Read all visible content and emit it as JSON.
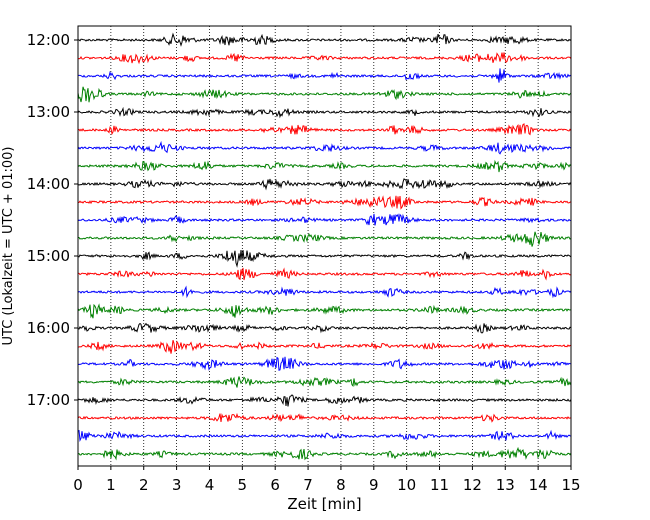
{
  "chart_data": {
    "type": "line",
    "title": "",
    "xlabel": "Zeit  [min]",
    "ylabel": "UTC (Lokalzeit = UTC + 01:00)",
    "xlim": [
      0,
      15
    ],
    "x_ticks": [
      "0",
      "1",
      "2",
      "3",
      "4",
      "5",
      "6",
      "7",
      "8",
      "9",
      "10",
      "11",
      "12",
      "13",
      "14",
      "15"
    ],
    "y_ticks": [
      "12:00",
      "13:00",
      "14:00",
      "15:00",
      "16:00",
      "17:00"
    ],
    "trace_interval_minutes": 15,
    "first_trace": "12:00",
    "trace_count": 24,
    "trace_colors": [
      "#000000",
      "#ff0000",
      "#0000ff",
      "#008000"
    ],
    "vertical_grid": true,
    "grid_style": "dotted"
  }
}
